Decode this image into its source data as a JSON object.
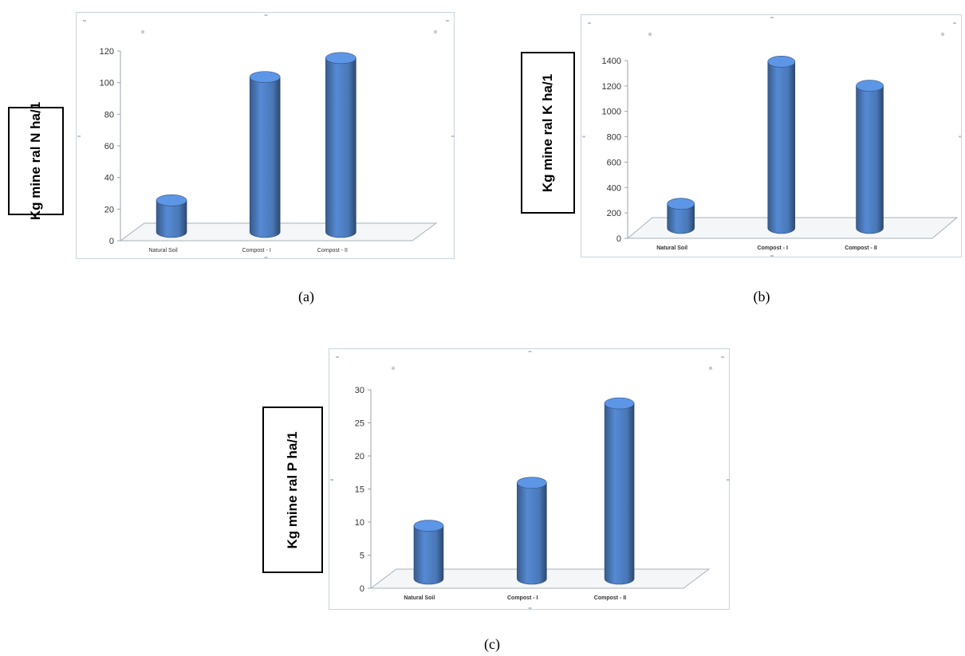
{
  "chart_data": [
    {
      "type": "bar",
      "categories": [
        "Natural Soil",
        "Compost - I",
        "Compost - II"
      ],
      "values": [
        20,
        98,
        110
      ],
      "ylabel": "Kg mine ral N ha/1",
      "yticks": [
        0,
        20,
        40,
        60,
        80,
        100,
        120
      ],
      "ylim": [
        0,
        120
      ],
      "caption": "(a)",
      "bar_color": "#4a78b8"
    },
    {
      "type": "bar",
      "categories": [
        "Natural Soil",
        "Compost - I",
        "Compost - II"
      ],
      "values": [
        190,
        1310,
        1120
      ],
      "ylabel": "Kg mine ral K ha/1",
      "yticks": [
        0,
        200,
        400,
        600,
        800,
        1000,
        1200,
        1400
      ],
      "ylim": [
        0,
        1400
      ],
      "caption": "(b)",
      "bar_color": "#4a78b8"
    },
    {
      "type": "bar",
      "categories": [
        "Natural Soil",
        "Compost - I",
        "Compost - II"
      ],
      "values": [
        8,
        14.5,
        26.5
      ],
      "ylabel": "Kg mine ral P ha/1",
      "yticks": [
        0,
        5,
        10,
        15,
        20,
        25,
        30
      ],
      "ylim": [
        0,
        30
      ],
      "caption": "(c)",
      "bar_color": "#4a78b8"
    }
  ]
}
